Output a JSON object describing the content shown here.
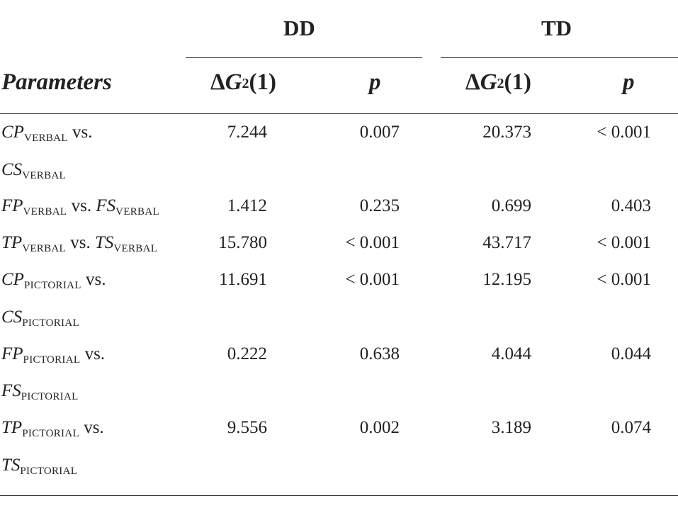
{
  "table": {
    "groups": [
      {
        "label": "DD"
      },
      {
        "label": "TD"
      }
    ],
    "headers": {
      "parameters": "Parameters",
      "dd_delta": {
        "delta": "Δ",
        "g": "G",
        "sup": "2",
        "df": "(1)"
      },
      "dd_p": "p",
      "td_delta": {
        "delta": "Δ",
        "g": "G",
        "sup": "2",
        "df": "(1)"
      },
      "td_p": "p"
    },
    "rows": [
      {
        "line1": {
          "a": "CP",
          "a_sub": "VERBAL",
          "vs": " vs."
        },
        "line2": {
          "b": "CS",
          "b_sub": "VERBAL"
        },
        "dd_g2": "7.244",
        "dd_p": "0.007",
        "td_g2": "20.373",
        "td_p": "< 0.001"
      },
      {
        "line1": {
          "a": "FP",
          "a_sub": "VERBAL",
          "vs": " vs. ",
          "b": "FS",
          "b_sub": "VERBAL"
        },
        "dd_g2": "1.412",
        "dd_p": "0.235",
        "td_g2": "0.699",
        "td_p": "0.403"
      },
      {
        "line1": {
          "a": "TP",
          "a_sub": "VERBAL",
          "vs": " vs. ",
          "b": "TS",
          "b_sub": "VERBAL"
        },
        "dd_g2": "15.780",
        "dd_p": "< 0.001",
        "td_g2": "43.717",
        "td_p": "< 0.001"
      },
      {
        "line1": {
          "a": "CP",
          "a_sub": "PICTORIAL",
          "vs": " vs."
        },
        "line2": {
          "b": "CS",
          "b_sub": "PICTORIAL"
        },
        "dd_g2": "11.691",
        "dd_p": "< 0.001",
        "td_g2": "12.195",
        "td_p": "< 0.001"
      },
      {
        "line1": {
          "a": "FP",
          "a_sub": "PICTORIAL",
          "vs": " vs."
        },
        "line2": {
          "b": "FS",
          "b_sub": "PICTORIAL"
        },
        "dd_g2": "0.222",
        "dd_p": "0.638",
        "td_g2": "4.044",
        "td_p": "0.044"
      },
      {
        "line1": {
          "a": "TP",
          "a_sub": "PICTORIAL",
          "vs": " vs."
        },
        "line2": {
          "b": "TS",
          "b_sub": "PICTORIAL"
        },
        "dd_g2": "9.556",
        "dd_p": "0.002",
        "td_g2": "3.189",
        "td_p": "0.074"
      }
    ]
  }
}
